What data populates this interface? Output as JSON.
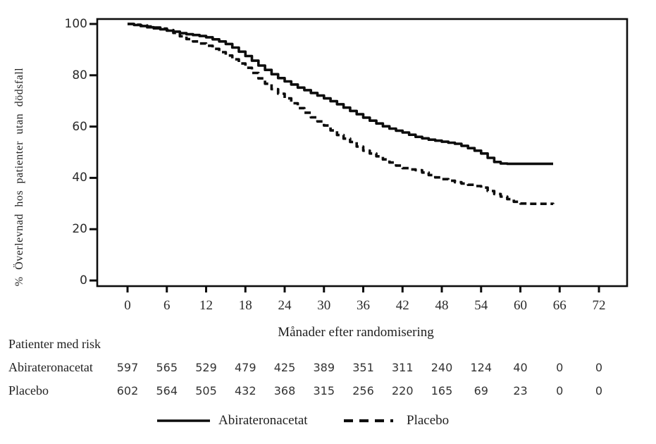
{
  "chart_data": {
    "type": "line",
    "variant": "kaplan_meier_step_plot",
    "title": "",
    "ylabel": "% Överlevnad hos patienter utan dödsfall",
    "xlabel": "Månader efter randomisering",
    "x_ticks": [
      0,
      6,
      12,
      18,
      24,
      30,
      36,
      42,
      48,
      54,
      60,
      66,
      72
    ],
    "y_ticks": [
      0,
      20,
      40,
      60,
      80,
      100
    ],
    "xlim": [
      0,
      76
    ],
    "ylim": [
      0,
      100
    ],
    "grid": false,
    "line_color": "#0d0d0d",
    "background": "#ffffff",
    "legend": {
      "position": "bottom-center",
      "entries": [
        {
          "label": "Abirateronacetat",
          "style": "solid"
        },
        {
          "label": "Placebo",
          "style": "dashed"
        }
      ]
    },
    "series": [
      {
        "name": "Abirateronacetat",
        "style": "solid",
        "points": [
          [
            0,
            100
          ],
          [
            1,
            99.6
          ],
          [
            2,
            99.2
          ],
          [
            3,
            98.7
          ],
          [
            4,
            98.3
          ],
          [
            5,
            97.9
          ],
          [
            6,
            97.4
          ],
          [
            7,
            97.0
          ],
          [
            8,
            96.4
          ],
          [
            9,
            96.0
          ],
          [
            10,
            95.7
          ],
          [
            11,
            95.3
          ],
          [
            12,
            94.8
          ],
          [
            13,
            94.0
          ],
          [
            14,
            93.2
          ],
          [
            15,
            92.2
          ],
          [
            16,
            90.8
          ],
          [
            17,
            89.2
          ],
          [
            18,
            87.5
          ],
          [
            19,
            85.7
          ],
          [
            20,
            83.8
          ],
          [
            21,
            82.1
          ],
          [
            22,
            80.4
          ],
          [
            23,
            78.9
          ],
          [
            24,
            77.6
          ],
          [
            25,
            76.4
          ],
          [
            26,
            75.2
          ],
          [
            27,
            74.2
          ],
          [
            28,
            73.1
          ],
          [
            29,
            72.1
          ],
          [
            30,
            71.0
          ],
          [
            31,
            69.9
          ],
          [
            32,
            68.7
          ],
          [
            33,
            67.4
          ],
          [
            34,
            66.1
          ],
          [
            35,
            64.8
          ],
          [
            36,
            63.5
          ],
          [
            37,
            62.3
          ],
          [
            38,
            61.2
          ],
          [
            39,
            60.1
          ],
          [
            40,
            59.2
          ],
          [
            41,
            58.4
          ],
          [
            42,
            57.7
          ],
          [
            43,
            56.8
          ],
          [
            44,
            56.0
          ],
          [
            45,
            55.4
          ],
          [
            46,
            54.9
          ],
          [
            47,
            54.5
          ],
          [
            48,
            54.1
          ],
          [
            49,
            53.7
          ],
          [
            50,
            53.3
          ],
          [
            51,
            52.5
          ],
          [
            52,
            51.6
          ],
          [
            53,
            50.6
          ],
          [
            54,
            49.5
          ],
          [
            55,
            47.8
          ],
          [
            56,
            46.2
          ],
          [
            57,
            45.6
          ],
          [
            58,
            45.5
          ],
          [
            65,
            45.5
          ]
        ]
      },
      {
        "name": "Placebo",
        "style": "dashed",
        "points": [
          [
            0,
            100
          ],
          [
            1,
            99.7
          ],
          [
            2,
            99.4
          ],
          [
            3,
            99.0
          ],
          [
            4,
            98.6
          ],
          [
            5,
            98.2
          ],
          [
            6,
            97.6
          ],
          [
            7,
            96.5
          ],
          [
            8,
            95.2
          ],
          [
            9,
            94.1
          ],
          [
            10,
            93.2
          ],
          [
            11,
            92.4
          ],
          [
            12,
            91.5
          ],
          [
            13,
            90.3
          ],
          [
            14,
            89.0
          ],
          [
            15,
            87.7
          ],
          [
            16,
            86.2
          ],
          [
            17,
            84.6
          ],
          [
            18,
            82.9
          ],
          [
            19,
            80.9
          ],
          [
            20,
            78.8
          ],
          [
            21,
            76.7
          ],
          [
            22,
            74.6
          ],
          [
            23,
            72.8
          ],
          [
            24,
            71.0
          ],
          [
            25,
            69.1
          ],
          [
            26,
            67.2
          ],
          [
            27,
            65.4
          ],
          [
            28,
            63.6
          ],
          [
            29,
            62.0
          ],
          [
            30,
            60.4
          ],
          [
            31,
            58.5
          ],
          [
            32,
            56.7
          ],
          [
            33,
            55.3
          ],
          [
            34,
            54.0
          ],
          [
            35,
            52.2
          ],
          [
            36,
            50.6
          ],
          [
            37,
            49.5
          ],
          [
            38,
            48.4
          ],
          [
            39,
            47.2
          ],
          [
            40,
            46.0
          ],
          [
            41,
            44.8
          ],
          [
            42,
            43.8
          ],
          [
            43,
            43.3
          ],
          [
            44,
            43.0
          ],
          [
            45,
            42.1
          ],
          [
            46,
            41.1
          ],
          [
            47,
            40.2
          ],
          [
            48,
            39.5
          ],
          [
            49,
            38.9
          ],
          [
            50,
            38.3
          ],
          [
            51,
            37.8
          ],
          [
            52,
            37.3
          ],
          [
            53,
            36.8
          ],
          [
            54,
            36.2
          ],
          [
            55,
            34.9
          ],
          [
            56,
            33.7
          ],
          [
            57,
            32.7
          ],
          [
            58,
            31.7
          ],
          [
            59,
            30.7
          ],
          [
            60,
            30.0
          ],
          [
            61,
            29.9
          ],
          [
            65,
            29.8
          ]
        ]
      }
    ],
    "risk_table": {
      "title": "Patienter med risk",
      "columns": [
        0,
        6,
        12,
        18,
        24,
        30,
        36,
        42,
        48,
        54,
        60,
        66,
        72
      ],
      "rows": [
        {
          "label": "Abirateronacetat",
          "values": [
            597,
            565,
            529,
            479,
            425,
            389,
            351,
            311,
            240,
            124,
            40,
            0,
            0
          ]
        },
        {
          "label": "Placebo",
          "values": [
            602,
            564,
            505,
            432,
            368,
            315,
            256,
            220,
            165,
            69,
            23,
            0,
            0
          ]
        }
      ]
    }
  }
}
